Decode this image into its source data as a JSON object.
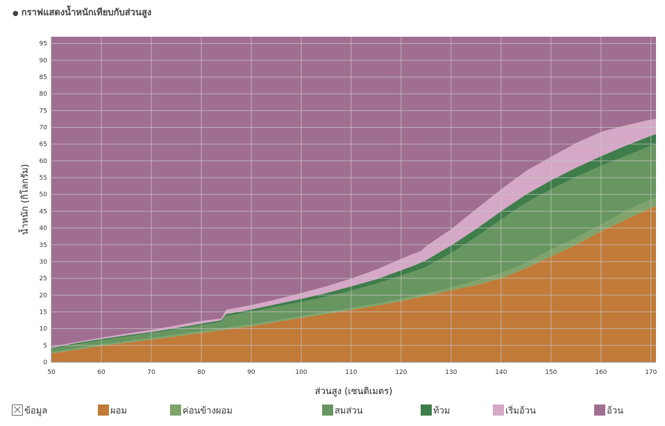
{
  "page": {
    "title": "กราฟแสดงน้ำหนักเทียบกับส่วนสูง",
    "bullet": "●"
  },
  "chart_data": {
    "type": "area",
    "stacked": true,
    "title": "กราฟแสดงน้ำหนักเทียบกับส่วนสูง",
    "xlabel": "ส่วนสูง (เซนติเมตร)",
    "ylabel": "น้ำหนัก (กิโลกรัม)",
    "xlim": [
      50,
      171
    ],
    "ylim": [
      0,
      97
    ],
    "xticks": [
      50,
      60,
      70,
      80,
      90,
      100,
      110,
      120,
      130,
      140,
      150,
      160,
      170
    ],
    "yticks": [
      0,
      5,
      10,
      15,
      20,
      25,
      30,
      35,
      40,
      45,
      50,
      55,
      60,
      65,
      70,
      75,
      80,
      85,
      90,
      95
    ],
    "grid": true,
    "legend_position": "bottom",
    "x": [
      50,
      55,
      60,
      65,
      70,
      75,
      80,
      84,
      85,
      86,
      90,
      95,
      100,
      105,
      110,
      115,
      120,
      122,
      124,
      125,
      130,
      135,
      140,
      145,
      150,
      155,
      160,
      165,
      170,
      171
    ],
    "boundaries": {
      "b1": [
        2.6,
        3.7,
        4.9,
        5.8,
        6.7,
        7.7,
        8.7,
        9.5,
        9.7,
        9.9,
        10.7,
        12.0,
        13.2,
        14.4,
        15.6,
        16.8,
        18.2,
        18.9,
        19.5,
        19.8,
        21.4,
        23.0,
        25.0,
        28.0,
        31.5,
        35.0,
        39.0,
        42.5,
        46.0,
        46.5
      ],
      "b2": [
        2.9,
        4.1,
        5.3,
        6.2,
        7.2,
        8.2,
        9.2,
        10.0,
        10.2,
        10.4,
        11.2,
        12.5,
        13.7,
        14.9,
        16.1,
        17.4,
        18.8,
        19.5,
        20.1,
        20.4,
        22.2,
        24.3,
        26.5,
        29.5,
        33.5,
        37.0,
        41.0,
        45.0,
        48.5,
        49.0
      ],
      "b3": [
        3.9,
        5.3,
        6.5,
        7.6,
        8.6,
        9.8,
        11.0,
        12.0,
        13.8,
        14.0,
        15.0,
        16.5,
        17.9,
        19.5,
        21.3,
        23.3,
        25.8,
        26.8,
        27.8,
        28.4,
        32.5,
        37.3,
        42.5,
        47.5,
        51.5,
        55.2,
        58.5,
        61.5,
        64.5,
        65.0
      ],
      "b4": [
        4.2,
        5.7,
        6.9,
        8.0,
        9.0,
        10.2,
        11.5,
        12.5,
        14.4,
        14.6,
        15.7,
        17.3,
        18.9,
        20.6,
        22.6,
        24.7,
        27.4,
        28.5,
        29.7,
        30.4,
        34.8,
        39.7,
        45.0,
        50.0,
        54.2,
        58.0,
        61.4,
        64.6,
        67.5,
        68.0
      ],
      "b5": [
        4.6,
        6.0,
        7.3,
        8.5,
        9.6,
        10.9,
        12.3,
        13.0,
        15.6,
        15.9,
        17.0,
        18.7,
        20.6,
        22.6,
        24.9,
        27.6,
        30.8,
        32.0,
        33.2,
        34.6,
        39.6,
        45.6,
        51.5,
        57.0,
        61.2,
        65.3,
        68.6,
        70.6,
        72.3,
        72.5
      ]
    },
    "series": [
      {
        "name": "ผอม",
        "color": "#c17a38",
        "from": "zero",
        "to": "b1"
      },
      {
        "name": "ค่อนข้างผอม",
        "color": "#7fa36a",
        "from": "b1",
        "to": "b2"
      },
      {
        "name": "สมส่วน",
        "color": "#689660",
        "from": "b2",
        "to": "b3"
      },
      {
        "name": "ท้วม",
        "color": "#3f7d4a",
        "from": "b3",
        "to": "b4"
      },
      {
        "name": "เริ่มอ้วน",
        "color": "#d4a8c6",
        "from": "b4",
        "to": "b5"
      },
      {
        "name": "อ้วน",
        "color": "#a06e91",
        "from": "b5",
        "to": "top"
      }
    ]
  },
  "legend": [
    {
      "label": "ข้อมูล",
      "type": "box"
    },
    {
      "label": "ผอม",
      "color": "#c17a38"
    },
    {
      "label": "ค่อนข้างผอม",
      "color": "#7fa36a"
    },
    {
      "label": "สมส่วน",
      "color": "#689660"
    },
    {
      "label": "ท้วม",
      "color": "#3f7d4a"
    },
    {
      "label": "เริ่มอ้วน",
      "color": "#d4a8c6"
    },
    {
      "label": "อ้วน",
      "color": "#a06e91"
    }
  ]
}
